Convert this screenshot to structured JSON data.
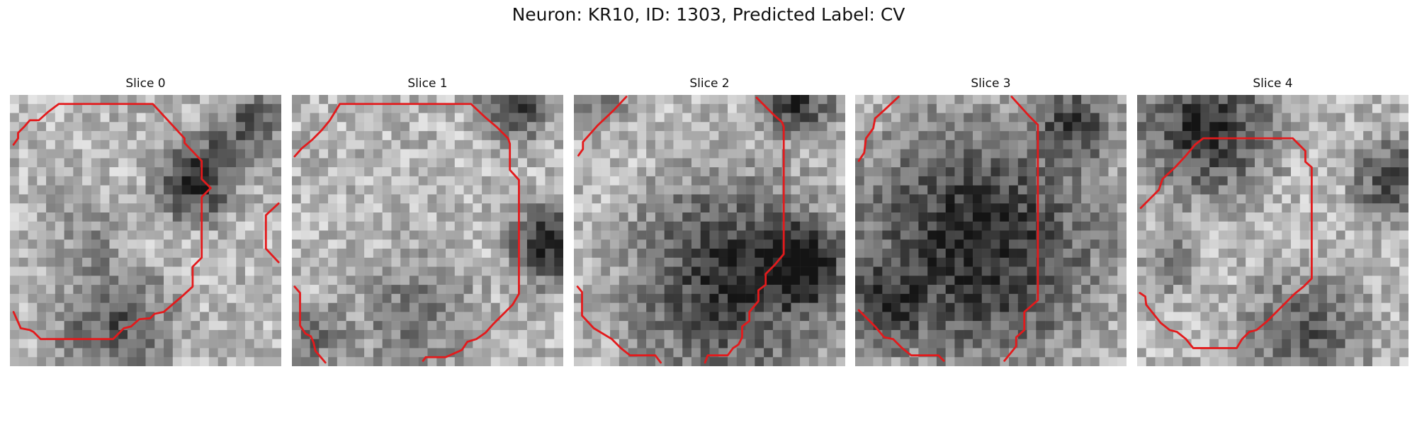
{
  "figure": {
    "title": "Neuron: KR10, ID: 1303, Predicted Label: CV"
  },
  "panels": [
    {
      "title": "Slice 0"
    },
    {
      "title": "Slice 1"
    },
    {
      "title": "Slice 2"
    },
    {
      "title": "Slice 3"
    },
    {
      "title": "Slice 4"
    }
  ],
  "colors": {
    "contour": "#e31a1c",
    "background": "#ffffff"
  }
}
